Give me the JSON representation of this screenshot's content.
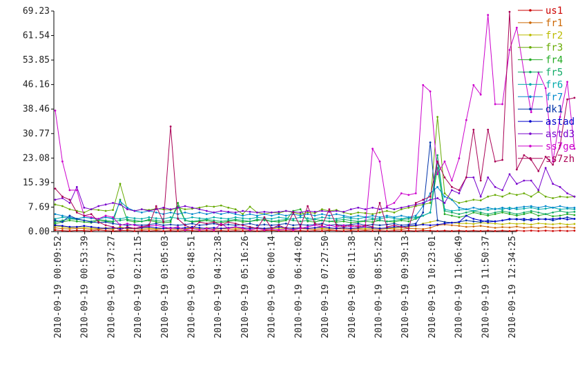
{
  "chart_data": {
    "type": "line",
    "title": "",
    "xlabel": "",
    "ylabel": "",
    "ylim": [
      0,
      69.23
    ],
    "y_ticks": [
      "0.00",
      "7.69",
      "15.39",
      "23.08",
      "30.77",
      "38.46",
      "46.16",
      "53.85",
      "61.54",
      "69.23"
    ],
    "x_tick_labels": [
      "2010-09-19 00:09:52",
      "2010-09-19 00:53:39",
      "2010-09-19 01:37:27",
      "2010-09-19 02:21:15",
      "2010-09-19 03:05:03",
      "2010-09-19 03:48:51",
      "2010-09-19 04:32:38",
      "2010-09-19 05:16:26",
      "2010-09-19 06:00:14",
      "2010-09-19 06:44:02",
      "2010-09-19 07:27:50",
      "2010-09-19 08:11:38",
      "2010-09-19 08:55:25",
      "2010-09-19 09:39:13",
      "2010-09-19 10:23:01",
      "2010-09-19 11:06:49",
      "2010-09-19 11:50:37",
      "2010-09-19 12:34:25"
    ],
    "grid": false,
    "legend": "right",
    "series": [
      {
        "name": "us1",
        "color": "#cc0000",
        "values": [
          0.5,
          0.3,
          0.2,
          0.4,
          0.3,
          0.2,
          0.5,
          0.3,
          0.2,
          0.3,
          0.4,
          0.2,
          0.3,
          0.2,
          0.3,
          0.2,
          0.3,
          0.2,
          0.4,
          0.3,
          0.2,
          0.3,
          0.2,
          0.3,
          0.2,
          0.3,
          0.2,
          0.3,
          0.2,
          0.3,
          0.4,
          0.2,
          0.3,
          0.2,
          0.3,
          0.2,
          0.3,
          0.2,
          0.4,
          0.3,
          0.2,
          0.3,
          0.2,
          0.3,
          0.2,
          0.3,
          0.2,
          0.3,
          0.2,
          0.3,
          0.2,
          0.4,
          0.3,
          0.2,
          0.3,
          0.2,
          0.3,
          0.2,
          0.3,
          0.2,
          0.3,
          0.2,
          0.3,
          0.2,
          0.3,
          0.2,
          0.3,
          0.2,
          0.3,
          0.2,
          0.3,
          0.2,
          0.3
        ]
      },
      {
        "name": "fr1",
        "color": "#cc6600",
        "values": [
          1.2,
          0.9,
          0.8,
          1.0,
          0.9,
          0.7,
          0.8,
          0.9,
          0.7,
          1.5,
          0.8,
          0.9,
          0.7,
          0.8,
          0.6,
          0.9,
          0.8,
          0.7,
          0.8,
          0.9,
          0.6,
          0.8,
          0.7,
          0.9,
          0.8,
          0.7,
          0.8,
          0.6,
          0.9,
          0.8,
          0.7,
          0.6,
          0.8,
          0.7,
          0.9,
          0.8,
          0.7,
          0.8,
          0.6,
          0.9,
          0.8,
          0.7,
          0.8,
          0.6,
          0.8,
          0.7,
          0.9,
          0.8,
          0.7,
          1.0,
          0.9,
          0.8,
          1.2,
          2.0,
          2.2,
          2.0,
          1.8,
          1.5,
          1.6,
          1.8,
          1.5,
          1.2,
          1.4,
          1.3,
          1.6,
          1.2,
          1.4,
          1.1,
          1.5,
          1.2,
          1.3,
          1.5,
          1.2
        ]
      },
      {
        "name": "fr2",
        "color": "#bbbb00",
        "values": [
          1.8,
          1.5,
          1.2,
          1.4,
          1.3,
          1.1,
          1.0,
          1.2,
          1.0,
          1.3,
          1.1,
          1.0,
          1.2,
          1.1,
          0.9,
          1.0,
          1.2,
          1.1,
          1.0,
          1.1,
          0.9,
          1.2,
          1.1,
          1.0,
          1.2,
          1.1,
          1.0,
          1.2,
          1.1,
          1.0,
          0.9,
          1.1,
          1.0,
          1.2,
          1.1,
          1.0,
          1.2,
          1.1,
          1.0,
          1.1,
          1.2,
          1.0,
          1.1,
          1.0,
          1.2,
          1.1,
          1.0,
          1.2,
          1.3,
          1.5,
          1.8,
          2.5,
          3.0,
          3.5,
          3.0,
          2.8,
          2.5,
          2.6,
          2.4,
          2.8,
          2.6,
          2.5,
          2.3,
          2.6,
          2.4,
          2.5,
          2.2,
          2.6,
          2.4,
          2.3,
          2.5,
          2.2,
          2.4
        ]
      },
      {
        "name": "fr3",
        "color": "#66aa00",
        "values": [
          8.5,
          8.0,
          7.0,
          6.5,
          6.0,
          7.0,
          6.8,
          6.5,
          6.8,
          15.0,
          7.0,
          6.5,
          7.0,
          6.8,
          7.2,
          7.0,
          6.8,
          7.5,
          7.0,
          7.2,
          7.5,
          8.0,
          7.8,
          8.2,
          7.5,
          7.0,
          5.5,
          7.8,
          6.0,
          5.5,
          6.0,
          5.8,
          6.5,
          6.0,
          5.5,
          6.0,
          5.8,
          7.0,
          6.5,
          6.8,
          6.0,
          5.5,
          6.0,
          5.8,
          5.5,
          6.0,
          6.5,
          6.0,
          7.0,
          7.5,
          8.0,
          8.5,
          9.0,
          36.0,
          12.0,
          10.0,
          9.0,
          9.5,
          10.0,
          9.8,
          11.0,
          11.5,
          11.0,
          12.0,
          11.5,
          12.0,
          11.0,
          12.5,
          11.0,
          10.5,
          11.0,
          10.8,
          11.0
        ]
      },
      {
        "name": "fr4",
        "color": "#22aa22",
        "values": [
          2.5,
          3.0,
          3.5,
          3.2,
          3.0,
          2.8,
          3.5,
          3.2,
          3.0,
          10.0,
          3.5,
          3.0,
          3.2,
          3.5,
          3.0,
          2.8,
          3.0,
          9.0,
          3.5,
          3.0,
          3.2,
          3.5,
          3.0,
          2.8,
          3.2,
          3.5,
          3.0,
          3.2,
          3.5,
          3.8,
          3.2,
          3.0,
          3.5,
          6.5,
          7.0,
          3.2,
          3.0,
          3.5,
          3.2,
          3.0,
          3.2,
          2.8,
          3.0,
          3.2,
          3.0,
          3.5,
          3.2,
          3.0,
          3.5,
          3.2,
          4.0,
          5.0,
          6.0,
          20.0,
          5.5,
          5.0,
          4.5,
          5.0,
          6.0,
          5.5,
          5.0,
          5.5,
          6.0,
          5.5,
          5.0,
          5.5,
          6.0,
          5.0,
          5.5,
          4.8,
          5.0,
          5.5,
          5.2
        ]
      },
      {
        "name": "fr5",
        "color": "#11aa66",
        "values": [
          3.0,
          3.5,
          4.0,
          3.8,
          3.5,
          3.2,
          3.8,
          3.5,
          3.2,
          3.5,
          3.8,
          3.5,
          3.2,
          3.8,
          3.5,
          3.2,
          3.5,
          8.0,
          3.5,
          3.2,
          3.5,
          3.8,
          3.5,
          3.2,
          3.5,
          3.8,
          3.5,
          3.2,
          3.8,
          3.5,
          3.2,
          3.5,
          3.8,
          3.5,
          3.2,
          3.5,
          3.8,
          3.5,
          3.2,
          3.5,
          3.8,
          3.5,
          3.2,
          3.5,
          3.8,
          3.5,
          3.2,
          3.5,
          3.8,
          4.0,
          4.5,
          5.0,
          6.0,
          24.0,
          6.5,
          6.0,
          5.5,
          6.0,
          6.5,
          6.0,
          5.5,
          6.0,
          6.5,
          6.0,
          5.5,
          6.0,
          6.5,
          6.0,
          5.5,
          6.0,
          6.5,
          6.0,
          6.2
        ]
      },
      {
        "name": "fr6",
        "color": "#00aaaa",
        "values": [
          4.0,
          4.5,
          4.2,
          4.0,
          4.5,
          4.2,
          4.0,
          4.5,
          4.2,
          4.0,
          4.5,
          4.2,
          4.0,
          4.5,
          4.2,
          4.0,
          4.5,
          4.2,
          4.0,
          4.5,
          4.2,
          4.0,
          4.5,
          4.2,
          4.0,
          4.5,
          4.2,
          4.0,
          4.5,
          4.2,
          4.0,
          4.5,
          4.2,
          4.0,
          4.5,
          4.2,
          4.0,
          4.5,
          4.2,
          4.0,
          4.5,
          4.2,
          4.0,
          4.5,
          4.2,
          4.0,
          4.5,
          4.2,
          4.0,
          4.5,
          4.2,
          5.0,
          6.0,
          22.0,
          7.0,
          6.5,
          6.8,
          7.0,
          6.5,
          7.0,
          6.8,
          7.2,
          7.0,
          7.5,
          7.0,
          7.2,
          7.5,
          7.0,
          7.2,
          7.5,
          7.0,
          7.2,
          7.0
        ]
      },
      {
        "name": "fr7",
        "color": "#0088cc",
        "values": [
          5.5,
          5.0,
          4.5,
          4.0,
          4.5,
          4.2,
          4.0,
          4.5,
          4.0,
          9.5,
          7.5,
          6.5,
          6.0,
          6.5,
          6.0,
          5.5,
          6.0,
          5.5,
          6.0,
          5.5,
          6.0,
          5.5,
          6.0,
          5.5,
          6.0,
          5.5,
          5.0,
          5.5,
          5.0,
          5.5,
          5.0,
          5.5,
          5.0,
          5.5,
          5.0,
          5.5,
          5.0,
          5.5,
          5.0,
          5.5,
          5.0,
          4.5,
          5.0,
          4.5,
          5.0,
          4.5,
          5.0,
          4.5,
          5.0,
          4.5,
          5.0,
          8.0,
          12.0,
          14.0,
          11.0,
          10.0,
          7.5,
          7.0,
          7.5,
          7.0,
          7.5,
          7.0,
          7.5,
          7.0,
          7.5,
          7.8,
          8.0,
          7.5,
          8.0,
          7.5,
          8.0,
          7.5,
          7.5
        ]
      },
      {
        "name": "dk1",
        "color": "#0033aa",
        "values": [
          3.5,
          3.0,
          5.0,
          4.0,
          3.5,
          3.0,
          2.8,
          3.0,
          2.5,
          2.2,
          2.0,
          2.2,
          2.0,
          2.2,
          2.5,
          2.0,
          2.2,
          2.0,
          2.2,
          2.5,
          2.0,
          2.2,
          2.5,
          2.0,
          2.2,
          2.0,
          2.2,
          2.5,
          2.0,
          2.2,
          2.0,
          2.2,
          2.5,
          2.0,
          2.2,
          2.0,
          2.2,
          2.5,
          2.0,
          2.2,
          2.0,
          2.2,
          2.5,
          2.0,
          2.2,
          2.0,
          2.2,
          2.5,
          2.0,
          2.2,
          2.5,
          6.0,
          28.0,
          3.5,
          3.0,
          2.8,
          3.0,
          3.5,
          3.2,
          3.0,
          3.5,
          3.2,
          3.5,
          3.8,
          4.0,
          3.5,
          4.0,
          3.8,
          4.0,
          3.5,
          4.0,
          4.5,
          4.0
        ]
      },
      {
        "name": "astad",
        "color": "#0000cc",
        "values": [
          2.0,
          1.8,
          1.5,
          1.5,
          1.8,
          1.5,
          1.2,
          1.0,
          1.2,
          1.0,
          1.2,
          1.0,
          1.2,
          1.5,
          1.2,
          1.0,
          1.2,
          1.0,
          1.2,
          1.5,
          1.2,
          1.0,
          1.2,
          1.0,
          1.2,
          1.5,
          1.2,
          1.0,
          1.2,
          1.0,
          1.2,
          1.5,
          1.2,
          1.0,
          1.2,
          1.0,
          1.2,
          1.5,
          1.2,
          1.0,
          1.2,
          1.0,
          1.2,
          1.5,
          1.2,
          1.0,
          1.2,
          1.5,
          1.5,
          1.8,
          2.0,
          2.2,
          2.0,
          2.2,
          2.5,
          2.8,
          3.0,
          5.0,
          4.0,
          3.5,
          3.0,
          3.2,
          3.5,
          4.0,
          3.8,
          4.0,
          3.5,
          4.0,
          3.8,
          4.0,
          4.2,
          3.8,
          4.0
        ]
      },
      {
        "name": "astd3",
        "color": "#7700cc",
        "values": [
          10.0,
          10.5,
          9.0,
          14.0,
          7.5,
          7.0,
          8.0,
          8.5,
          9.0,
          8.5,
          7.0,
          6.5,
          7.0,
          6.5,
          7.0,
          7.5,
          7.0,
          7.5,
          8.0,
          7.5,
          7.0,
          6.5,
          6.0,
          6.5,
          6.2,
          6.0,
          6.5,
          6.2,
          6.0,
          6.2,
          6.0,
          6.2,
          6.5,
          6.2,
          6.0,
          6.5,
          6.2,
          6.5,
          6.2,
          6.5,
          6.2,
          7.0,
          7.5,
          7.0,
          7.5,
          7.0,
          7.5,
          7.0,
          7.5,
          8.0,
          8.5,
          9.0,
          10.0,
          10.5,
          9.0,
          13.0,
          12.0,
          17.0,
          17.0,
          11.0,
          17.0,
          14.0,
          13.0,
          18.0,
          15.0,
          16.0,
          16.0,
          13.0,
          20.0,
          15.0,
          14.0,
          12.0,
          11.0
        ]
      },
      {
        "name": "ss7ge",
        "color": "#cc00cc",
        "values": [
          38.0,
          22.0,
          13.0,
          13.0,
          5.0,
          4.5,
          4.0,
          5.0,
          4.5,
          2.0,
          2.5,
          2.0,
          1.5,
          1.8,
          2.0,
          1.5,
          1.0,
          1.5,
          0.5,
          1.0,
          0.5,
          1.0,
          0.5,
          2.5,
          1.0,
          1.5,
          1.0,
          0.5,
          1.0,
          0.5,
          0.8,
          0.5,
          0.8,
          0.5,
          1.0,
          1.5,
          2.0,
          1.5,
          2.0,
          1.5,
          2.0,
          1.5,
          2.0,
          1.5,
          26.0,
          22.0,
          8.0,
          9.0,
          12.0,
          11.5,
          12.0,
          46.0,
          44.0,
          18.0,
          22.0,
          16.0,
          23.0,
          35.0,
          46.0,
          43.0,
          68.0,
          40.0,
          40.0,
          57.0,
          64.0,
          50.0,
          37.5,
          50.0,
          45.0,
          22.0,
          36.0,
          47.0,
          26.0
        ]
      },
      {
        "name": "ss7zh",
        "color": "#aa0055",
        "values": [
          13.5,
          11.0,
          10.0,
          6.0,
          5.0,
          5.5,
          3.0,
          2.0,
          1.5,
          0.5,
          1.5,
          1.0,
          1.5,
          2.0,
          8.0,
          3.0,
          33.0,
          4.0,
          2.0,
          1.0,
          3.0,
          2.5,
          3.0,
          2.0,
          3.0,
          2.5,
          2.0,
          1.5,
          1.0,
          4.5,
          1.0,
          2.0,
          1.0,
          6.0,
          1.5,
          8.0,
          2.5,
          2.0,
          7.0,
          2.0,
          1.5,
          2.0,
          1.5,
          2.0,
          1.5,
          9.0,
          1.5,
          2.0,
          1.5,
          1.0,
          9.0,
          10.0,
          11.0,
          22.0,
          17.0,
          14.0,
          13.0,
          17.0,
          32.0,
          16.0,
          32.0,
          22.0,
          22.5,
          69.0,
          19.5,
          24.0,
          22.5,
          19.0,
          23.5,
          21.0,
          27.0,
          41.5,
          42.0
        ]
      }
    ]
  }
}
